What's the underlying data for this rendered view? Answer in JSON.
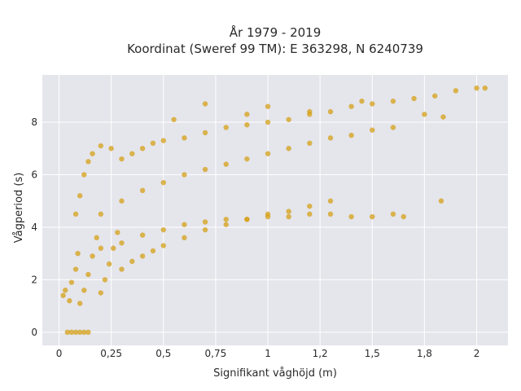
{
  "chart_data": {
    "type": "scatter",
    "title": "År 1979 - 2019",
    "subtitle": "Koordinat (Sweref 99 TM): E 363298, N 6240739",
    "xlabel": "Signifikant våghöjd (m)",
    "ylabel": "Vågperiod (s)",
    "xlim": [
      -0.08,
      2.15
    ],
    "ylim": [
      -0.5,
      9.8
    ],
    "x_ticks": [
      0,
      0.25,
      0.5,
      0.75,
      1,
      1.25,
      1.5,
      1.75,
      2
    ],
    "x_tick_labels": [
      "0",
      "0,25",
      "0,5",
      "0,75",
      "1",
      "1,2",
      "1,5",
      "1,8",
      "2"
    ],
    "y_ticks": [
      0,
      2,
      4,
      6,
      8
    ],
    "y_tick_labels": [
      "0",
      "2",
      "4",
      "6",
      "8"
    ],
    "grid": true,
    "marker_color": "#D4A017",
    "plot_background": "#E5E5EC",
    "series": [
      {
        "values": [
          [
            0.04,
            0.0
          ],
          [
            0.06,
            0.0
          ],
          [
            0.08,
            0.0
          ],
          [
            0.1,
            0.0
          ],
          [
            0.12,
            0.0
          ],
          [
            0.14,
            0.0
          ],
          [
            0.02,
            1.4
          ],
          [
            0.03,
            1.6
          ],
          [
            0.05,
            1.2
          ],
          [
            0.06,
            1.9
          ],
          [
            0.08,
            2.4
          ],
          [
            0.09,
            3.0
          ],
          [
            0.1,
            1.1
          ],
          [
            0.12,
            1.6
          ],
          [
            0.14,
            2.2
          ],
          [
            0.16,
            2.9
          ],
          [
            0.18,
            3.6
          ],
          [
            0.2,
            1.5
          ],
          [
            0.22,
            2.0
          ],
          [
            0.24,
            2.6
          ],
          [
            0.26,
            3.2
          ],
          [
            0.28,
            3.8
          ],
          [
            0.3,
            2.4
          ],
          [
            0.35,
            2.7
          ],
          [
            0.4,
            2.9
          ],
          [
            0.45,
            3.1
          ],
          [
            0.5,
            3.3
          ],
          [
            0.6,
            3.6
          ],
          [
            0.7,
            3.9
          ],
          [
            0.8,
            4.1
          ],
          [
            0.9,
            4.3
          ],
          [
            1.0,
            4.5
          ],
          [
            1.1,
            4.6
          ],
          [
            1.2,
            4.8
          ],
          [
            1.3,
            5.0
          ],
          [
            0.08,
            4.5
          ],
          [
            0.1,
            5.2
          ],
          [
            0.12,
            6.0
          ],
          [
            0.14,
            6.5
          ],
          [
            0.16,
            6.8
          ],
          [
            0.2,
            7.1
          ],
          [
            0.25,
            7.0
          ],
          [
            0.3,
            6.6
          ],
          [
            0.35,
            6.8
          ],
          [
            0.4,
            7.0
          ],
          [
            0.45,
            7.2
          ],
          [
            0.5,
            7.3
          ],
          [
            0.6,
            7.4
          ],
          [
            0.7,
            7.6
          ],
          [
            0.8,
            7.8
          ],
          [
            0.9,
            7.9
          ],
          [
            1.0,
            8.0
          ],
          [
            1.1,
            8.1
          ],
          [
            1.2,
            8.3
          ],
          [
            1.3,
            8.4
          ],
          [
            1.4,
            8.6
          ],
          [
            1.5,
            8.7
          ],
          [
            1.6,
            8.8
          ],
          [
            1.7,
            8.9
          ],
          [
            1.8,
            9.0
          ],
          [
            1.9,
            9.2
          ],
          [
            2.0,
            9.3
          ],
          [
            2.04,
            9.3
          ],
          [
            1.75,
            8.3
          ],
          [
            1.84,
            8.2
          ],
          [
            0.2,
            4.5
          ],
          [
            0.3,
            5.0
          ],
          [
            0.4,
            5.4
          ],
          [
            0.5,
            5.7
          ],
          [
            0.6,
            6.0
          ],
          [
            0.7,
            6.2
          ],
          [
            0.8,
            6.4
          ],
          [
            0.9,
            6.6
          ],
          [
            1.0,
            6.8
          ],
          [
            1.1,
            7.0
          ],
          [
            1.2,
            7.2
          ],
          [
            1.3,
            7.4
          ],
          [
            1.4,
            7.5
          ],
          [
            1.5,
            7.7
          ],
          [
            1.6,
            7.8
          ],
          [
            0.2,
            3.2
          ],
          [
            0.3,
            3.4
          ],
          [
            0.4,
            3.7
          ],
          [
            0.5,
            3.9
          ],
          [
            0.6,
            4.1
          ],
          [
            0.7,
            4.2
          ],
          [
            0.8,
            4.3
          ],
          [
            0.9,
            4.3
          ],
          [
            1.0,
            4.4
          ],
          [
            1.1,
            4.4
          ],
          [
            1.2,
            4.5
          ],
          [
            1.3,
            4.5
          ],
          [
            1.4,
            4.4
          ],
          [
            1.5,
            4.4
          ],
          [
            1.6,
            4.5
          ],
          [
            1.65,
            4.4
          ],
          [
            1.83,
            5.0
          ],
          [
            0.7,
            8.7
          ],
          [
            1.0,
            8.6
          ],
          [
            1.2,
            8.4
          ],
          [
            0.55,
            8.1
          ],
          [
            0.9,
            8.3
          ],
          [
            1.45,
            8.8
          ]
        ]
      }
    ]
  }
}
